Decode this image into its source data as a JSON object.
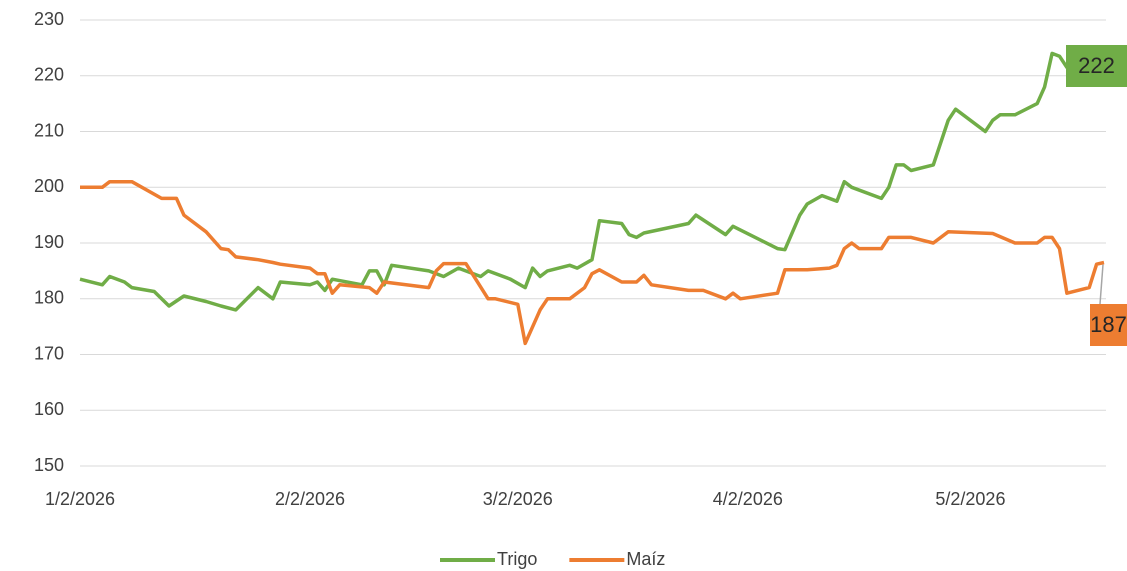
{
  "chart_data": {
    "type": "line",
    "xlim": [
      "2026-01-02",
      "2026-05-20"
    ],
    "xticks": [
      {
        "value": "2026-01-02",
        "label": "1/2/2026"
      },
      {
        "value": "2026-02-02",
        "label": "2/2/2026"
      },
      {
        "value": "2026-03-02",
        "label": "3/2/2026"
      },
      {
        "value": "2026-04-02",
        "label": "4/2/2026"
      },
      {
        "value": "2026-05-02",
        "label": "5/2/2026"
      }
    ],
    "ylim": [
      150,
      230
    ],
    "yticks": [
      150,
      160,
      170,
      180,
      190,
      200,
      210,
      220,
      230
    ],
    "grid": true,
    "legend": "bottom",
    "series": [
      {
        "name": "Trigo",
        "color": "#70ad47",
        "x": [
          "2026-01-02",
          "2026-01-05",
          "2026-01-06",
          "2026-01-08",
          "2026-01-09",
          "2026-01-12",
          "2026-01-14",
          "2026-01-16",
          "2026-01-19",
          "2026-01-21",
          "2026-01-23",
          "2026-01-26",
          "2026-01-28",
          "2026-01-29",
          "2026-02-02",
          "2026-02-03",
          "2026-02-04",
          "2026-02-05",
          "2026-02-09",
          "2026-02-10",
          "2026-02-11",
          "2026-02-12",
          "2026-02-13",
          "2026-02-18",
          "2026-02-20",
          "2026-02-22",
          "2026-02-25",
          "2026-02-26",
          "2026-03-01",
          "2026-03-03",
          "2026-03-04",
          "2026-03-05",
          "2026-03-06",
          "2026-03-09",
          "2026-03-10",
          "2026-03-12",
          "2026-03-13",
          "2026-03-16",
          "2026-03-17",
          "2026-03-18",
          "2026-03-19",
          "2026-03-25",
          "2026-03-26",
          "2026-03-30",
          "2026-03-31",
          "2026-04-06",
          "2026-04-07",
          "2026-04-09",
          "2026-04-10",
          "2026-04-12",
          "2026-04-14",
          "2026-04-15",
          "2026-04-16",
          "2026-04-20",
          "2026-04-21",
          "2026-04-22",
          "2026-04-23",
          "2026-04-24",
          "2026-04-27",
          "2026-04-29",
          "2026-04-30",
          "2026-05-04",
          "2026-05-05",
          "2026-05-06",
          "2026-05-08",
          "2026-05-11",
          "2026-05-12",
          "2026-05-13",
          "2026-05-14",
          "2026-05-15",
          "2026-05-16"
        ],
        "values": [
          183.5,
          182.5,
          184,
          183,
          182,
          181.3,
          178.7,
          180.5,
          179.5,
          178.7,
          178,
          182,
          180,
          183,
          182.5,
          183,
          181.5,
          183.5,
          182.5,
          185,
          185,
          182.5,
          186,
          185,
          184,
          185.5,
          184,
          185,
          183.5,
          182,
          185.5,
          184,
          185,
          186,
          185.5,
          187,
          194,
          193.5,
          191.5,
          191,
          191.8,
          193.5,
          195,
          191.5,
          193,
          189,
          188.8,
          195,
          197,
          198.5,
          197.5,
          201,
          200,
          198,
          200,
          204,
          204,
          203,
          204,
          212,
          214,
          210,
          212,
          213,
          213,
          215,
          218,
          224,
          223.5,
          221.5,
          222
        ],
        "value_labels": [
          null,
          null,
          null,
          null,
          null,
          null,
          null,
          null,
          null,
          null,
          null,
          null,
          null,
          null,
          null,
          null,
          null,
          null,
          null,
          null,
          null,
          null,
          null,
          null,
          null,
          null,
          null,
          null,
          null,
          null,
          null,
          null,
          null,
          null,
          null,
          null,
          null,
          null,
          null,
          null,
          null,
          null,
          null,
          null,
          null,
          null,
          null,
          null,
          null,
          null,
          null,
          null,
          null,
          null,
          null,
          null,
          null,
          null,
          null,
          null,
          null,
          null,
          null,
          null,
          null,
          null,
          null,
          null,
          null,
          null,
          "222"
        ]
      },
      {
        "name": "Maíz",
        "color": "#ed7d31",
        "x": [
          "2026-01-02",
          "2026-01-05",
          "2026-01-06",
          "2026-01-09",
          "2026-01-13",
          "2026-01-15",
          "2026-01-16",
          "2026-01-19",
          "2026-01-21",
          "2026-01-22",
          "2026-01-23",
          "2026-01-26",
          "2026-01-28",
          "2026-01-29",
          "2026-02-02",
          "2026-02-03",
          "2026-02-04",
          "2026-02-05",
          "2026-02-06",
          "2026-02-10",
          "2026-02-11",
          "2026-02-12",
          "2026-02-18",
          "2026-02-19",
          "2026-02-20",
          "2026-02-23",
          "2026-02-26",
          "2026-02-27",
          "2026-03-02",
          "2026-03-03",
          "2026-03-05",
          "2026-03-06",
          "2026-03-09",
          "2026-03-11",
          "2026-03-12",
          "2026-03-13",
          "2026-03-16",
          "2026-03-18",
          "2026-03-19",
          "2026-03-20",
          "2026-03-25",
          "2026-03-27",
          "2026-03-30",
          "2026-03-31",
          "2026-04-01",
          "2026-04-06",
          "2026-04-07",
          "2026-04-10",
          "2026-04-13",
          "2026-04-14",
          "2026-04-15",
          "2026-04-16",
          "2026-04-17",
          "2026-04-20",
          "2026-04-21",
          "2026-04-24",
          "2026-04-27",
          "2026-04-29",
          "2026-05-05",
          "2026-05-08",
          "2026-05-11",
          "2026-05-12",
          "2026-05-13",
          "2026-05-14",
          "2026-05-15",
          "2026-05-18",
          "2026-05-19",
          "2026-05-20"
        ],
        "values": [
          200,
          200,
          201,
          201,
          198,
          198,
          195,
          192,
          189,
          188.8,
          187.5,
          187,
          186.5,
          186.2,
          185.5,
          184.5,
          184.5,
          181,
          182.5,
          182,
          181,
          183,
          182,
          185,
          186.3,
          186.3,
          180,
          180,
          179,
          172,
          178,
          180,
          180,
          182,
          184.5,
          185.2,
          183,
          183,
          184.2,
          182.5,
          181.5,
          181.5,
          180,
          181,
          180,
          181,
          185.2,
          185.2,
          185.5,
          186,
          189,
          190,
          189,
          189,
          191,
          191,
          190,
          192,
          191.7,
          190,
          190,
          191,
          191,
          189,
          181,
          182,
          186.2,
          186.5
        ],
        "value_labels": [
          null,
          null,
          null,
          null,
          null,
          null,
          null,
          null,
          null,
          null,
          null,
          null,
          null,
          null,
          null,
          null,
          null,
          null,
          null,
          null,
          null,
          null,
          null,
          null,
          null,
          null,
          null,
          null,
          null,
          null,
          null,
          null,
          null,
          null,
          null,
          null,
          null,
          null,
          null,
          null,
          null,
          null,
          null,
          null,
          null,
          null,
          null,
          null,
          null,
          null,
          null,
          null,
          null,
          null,
          null,
          null,
          null,
          null,
          null,
          null,
          null,
          null,
          null,
          null,
          null,
          null,
          null,
          "187"
        ]
      }
    ]
  }
}
